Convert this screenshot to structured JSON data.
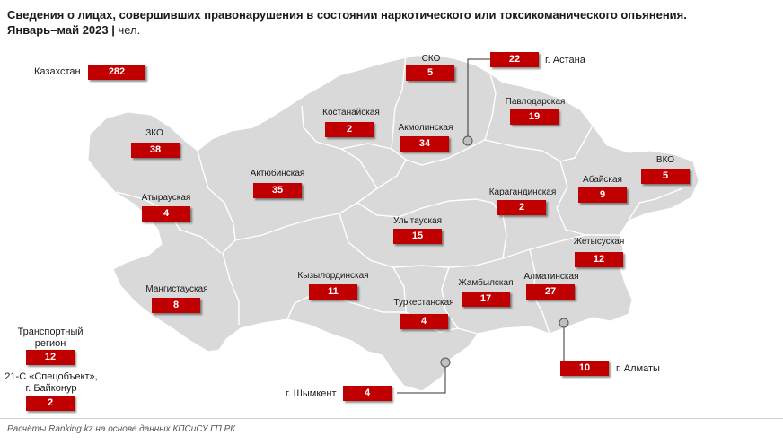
{
  "title": {
    "line1": "Сведения о лицах, совершивших правонарушения в состоянии наркотического или токсикоманического опьянения.",
    "period": "Январь–май 2023",
    "unit": "чел."
  },
  "total": {
    "label": "Казахстан",
    "value": "282"
  },
  "regions": {
    "sko": {
      "name": "СКО",
      "value": "5"
    },
    "kostanay": {
      "name": "Костанайская",
      "value": "2"
    },
    "akmola": {
      "name": "Акмолинская",
      "value": "34"
    },
    "pavlodar": {
      "name": "Павлодарская",
      "value": "19"
    },
    "zko": {
      "name": "ЗКО",
      "value": "38"
    },
    "aktobe": {
      "name": "Актюбинская",
      "value": "35"
    },
    "karaganda": {
      "name": "Карагандинская",
      "value": "2"
    },
    "abai": {
      "name": "Абайская",
      "value": "9"
    },
    "vko": {
      "name": "ВКО",
      "value": "5"
    },
    "atyrau": {
      "name": "Атырауская",
      "value": "4"
    },
    "ulytau": {
      "name": "Улытауская",
      "value": "15"
    },
    "zhetysu": {
      "name": "Жетысуская",
      "value": "12"
    },
    "mangystau": {
      "name": "Мангистауская",
      "value": "8"
    },
    "kyzylorda": {
      "name": "Кызылординская",
      "value": "11"
    },
    "zhambyl": {
      "name": "Жамбылская",
      "value": "17"
    },
    "almaty_reg": {
      "name": "Алматинская",
      "value": "27"
    },
    "turkestan": {
      "name": "Туркестанская",
      "value": "4"
    }
  },
  "cities": {
    "astana": {
      "name": "г. Астана",
      "value": "22"
    },
    "almaty": {
      "name": "г. Алматы",
      "value": "10"
    },
    "shymkent": {
      "name": "г. Шымкент",
      "value": "4"
    }
  },
  "other": {
    "transport": {
      "line1": "Транспортный",
      "line2": "регион",
      "value": "12"
    },
    "baikonur": {
      "line1": "21-С «Спецобъект»,",
      "line2": "г. Байконур",
      "value": "2"
    }
  },
  "source": "Расчёты Ranking.kz на основе данных КПСиСУ ГП РК",
  "colors": {
    "badge": "#c00000",
    "map_fill": "#d9d9d9",
    "border": "#ffffff"
  }
}
